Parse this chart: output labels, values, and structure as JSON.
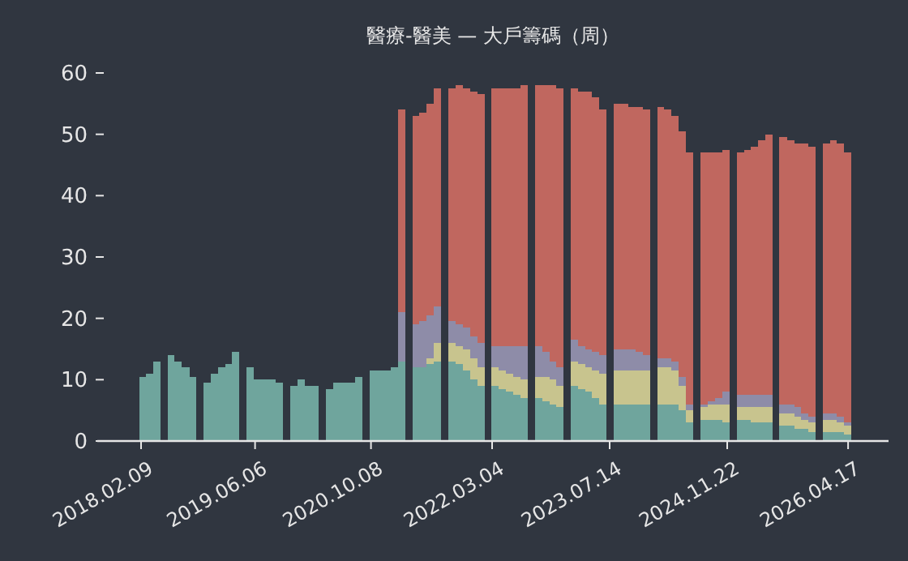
{
  "chart_data": {
    "type": "bar",
    "stacked": true,
    "title": "醫療-醫美 — 大戶籌碼（周）",
    "x": [
      "2018-02",
      "2018-03",
      "2018-04",
      "2018-05",
      "2018-06",
      "2018-07",
      "2018-08",
      "2018-09",
      "2018-10",
      "2018-11",
      "2018-12",
      "2019-01",
      "2019-02",
      "2019-03",
      "2019-04",
      "2019-05",
      "2019-06",
      "2019-07",
      "2019-08",
      "2019-09",
      "2019-10",
      "2019-11",
      "2019-12",
      "2020-01",
      "2020-02",
      "2020-03",
      "2020-04",
      "2020-05",
      "2020-06",
      "2020-07",
      "2020-08",
      "2020-09",
      "2020-10",
      "2020-11",
      "2020-12",
      "2021-01",
      "2021-02",
      "2021-03",
      "2021-04",
      "2021-05",
      "2021-06",
      "2021-07",
      "2021-08",
      "2021-09",
      "2021-10",
      "2021-11",
      "2021-12",
      "2022-01",
      "2022-02",
      "2022-03",
      "2022-04",
      "2022-05",
      "2022-06",
      "2022-07",
      "2022-08",
      "2022-09",
      "2022-10",
      "2022-11",
      "2022-12",
      "2023-01",
      "2023-02",
      "2023-03",
      "2023-04",
      "2023-05",
      "2023-06",
      "2023-07",
      "2023-08",
      "2023-09",
      "2023-10",
      "2023-11",
      "2023-12",
      "2024-01",
      "2024-02",
      "2024-03",
      "2024-04",
      "2024-05",
      "2024-06",
      "2024-07",
      "2024-08",
      "2024-09",
      "2024-10",
      "2024-11",
      "2024-12",
      "2025-01",
      "2025-02",
      "2025-03",
      "2025-04",
      "2025-05",
      "2025-06",
      "2025-07",
      "2025-08",
      "2025-09",
      "2025-10",
      "2025-11",
      "2025-12",
      "2026-01",
      "2026-02",
      "2026-03",
      "2026-04"
    ],
    "series": [
      {
        "color": "#6fa59d",
        "values": [
          10.5,
          11,
          13,
          null,
          14,
          13,
          12,
          10.5,
          null,
          9.5,
          11,
          12,
          12.5,
          14.5,
          null,
          12,
          10,
          10,
          10,
          9.5,
          null,
          9,
          10,
          9,
          9,
          null,
          8.5,
          9.5,
          9.5,
          9.5,
          10.5,
          null,
          11.5,
          11.5,
          11.5,
          12,
          13,
          null,
          12,
          12,
          12.5,
          13,
          null,
          13,
          12.5,
          11.5,
          10,
          9,
          null,
          9,
          8.5,
          8,
          7.5,
          7,
          null,
          7,
          6.5,
          6,
          5.5,
          null,
          9,
          8.5,
          8,
          7,
          6,
          null,
          6,
          6,
          6,
          6,
          6,
          null,
          6,
          6,
          6,
          5,
          3,
          null,
          3.5,
          3.5,
          3.5,
          3,
          null,
          3.5,
          3.5,
          3,
          3,
          3,
          null,
          2.5,
          2.5,
          2,
          2,
          1.5,
          null,
          1.5,
          1.5,
          1.5,
          1
        ]
      },
      {
        "color": "#c8c48e",
        "values": [
          0,
          0,
          0,
          null,
          0,
          0,
          0,
          0,
          null,
          0,
          0,
          0,
          0,
          0,
          null,
          0,
          0,
          0,
          0,
          0,
          null,
          0,
          0,
          0,
          0,
          null,
          0,
          0,
          0,
          0,
          0,
          null,
          0,
          0,
          0,
          0,
          0,
          null,
          0,
          0,
          1,
          3,
          null,
          3,
          3,
          3.5,
          3.5,
          3,
          null,
          3,
          3,
          3,
          3,
          3,
          null,
          3.5,
          4,
          4,
          3.5,
          null,
          4,
          4,
          4,
          4.5,
          5,
          null,
          5.5,
          5.5,
          5.5,
          5.5,
          5.5,
          null,
          6,
          6,
          5.5,
          4,
          2,
          null,
          2,
          2.5,
          2.5,
          3,
          null,
          2,
          2,
          2.5,
          2.5,
          2.5,
          null,
          2,
          2,
          2,
          1.5,
          1.5,
          null,
          2,
          2,
          1.5,
          1.5
        ]
      },
      {
        "color": "#8e8ca8",
        "values": [
          0,
          0,
          0,
          null,
          0,
          0,
          0,
          0,
          null,
          0,
          0,
          0,
          0,
          0,
          null,
          0,
          0,
          0,
          0,
          0,
          null,
          0,
          0,
          0,
          0,
          null,
          0,
          0,
          0,
          0,
          0,
          null,
          0,
          0,
          0,
          0,
          8,
          null,
          7,
          7.5,
          7,
          6,
          null,
          3.5,
          3.5,
          3.5,
          3.5,
          4,
          null,
          3.5,
          4,
          4.5,
          5,
          5.5,
          null,
          5,
          4,
          3,
          3,
          null,
          3.5,
          3,
          3,
          3,
          3,
          null,
          3.5,
          3.5,
          3.5,
          3,
          2.5,
          null,
          1.5,
          1.5,
          1.5,
          1.5,
          1,
          null,
          0.5,
          0.5,
          1,
          2,
          null,
          2,
          2,
          2,
          2,
          2,
          null,
          1.5,
          1.5,
          1.5,
          1,
          1,
          null,
          1,
          1,
          1,
          0.5
        ]
      },
      {
        "color": "#c0675f",
        "values": [
          0,
          0,
          0,
          null,
          0,
          0,
          0,
          0,
          null,
          0,
          0,
          0,
          0,
          0,
          null,
          0,
          0,
          0,
          0,
          0,
          null,
          0,
          0,
          0,
          0,
          null,
          0,
          0,
          0,
          0,
          0,
          null,
          0,
          0,
          0,
          0,
          33,
          null,
          34,
          34,
          34.5,
          35.5,
          null,
          38,
          39,
          39,
          40,
          40.5,
          null,
          42,
          42,
          42,
          42,
          42.5,
          null,
          42.5,
          43.5,
          45,
          45.5,
          null,
          41,
          41.5,
          42,
          41.5,
          40,
          null,
          40,
          40,
          39.5,
          40,
          40,
          null,
          41,
          40.5,
          40,
          40,
          41,
          null,
          41,
          40.5,
          40,
          39.5,
          null,
          39.5,
          40,
          40.5,
          41.5,
          42.5,
          null,
          43.5,
          43,
          43,
          44,
          44,
          null,
          44,
          44.5,
          44.5,
          44
        ]
      }
    ],
    "xlim": [
      "2017-08-08",
      "2026-10-05"
    ],
    "xticks": [
      {
        "value": "2018-02-09",
        "label": "2018.02.09"
      },
      {
        "value": "2019-06-06",
        "label": "2019.06.06"
      },
      {
        "value": "2020-10-08",
        "label": "2020.10.08"
      },
      {
        "value": "2022-03-04",
        "label": "2022.03.04"
      },
      {
        "value": "2023-07-14",
        "label": "2023.07.14"
      },
      {
        "value": "2024-11-22",
        "label": "2024.11.22"
      },
      {
        "value": "2026-04-17",
        "label": "2026.04.17"
      }
    ],
    "ylim": [
      0,
      60
    ],
    "yticks": [
      0,
      10,
      20,
      30,
      40,
      50,
      60
    ]
  }
}
